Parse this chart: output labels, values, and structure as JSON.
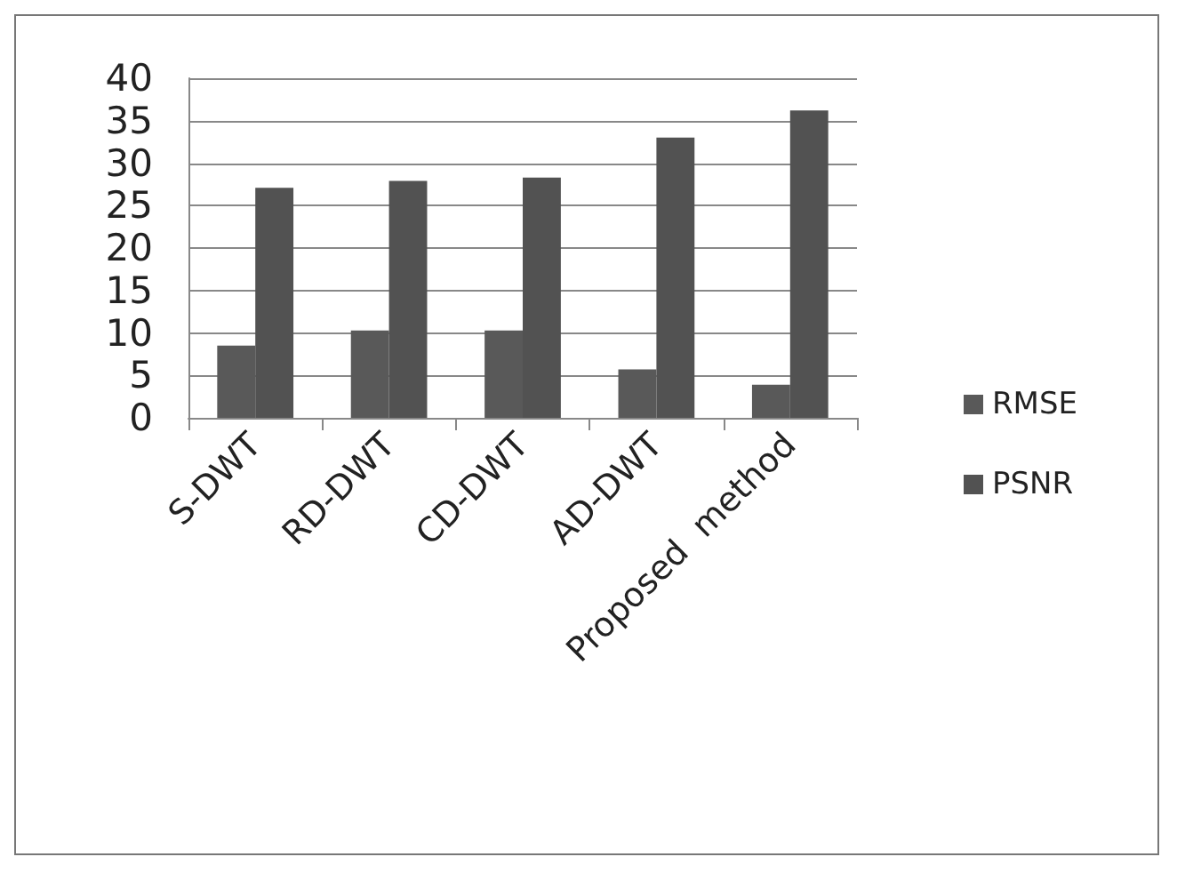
{
  "chart_data": {
    "type": "bar",
    "categories": [
      "S-DWT",
      "RD-DWT",
      "CD-DWT",
      "AD-DWT",
      "Proposed  method"
    ],
    "series": [
      {
        "name": "RMSE",
        "color": "#595959",
        "values": [
          8.5,
          10.3,
          10.3,
          5.7,
          3.9
        ]
      },
      {
        "name": "PSNR",
        "color": "#525252",
        "values": [
          27.1,
          27.9,
          28.3,
          33.0,
          36.2
        ]
      }
    ],
    "ylim": [
      0,
      40
    ],
    "yticks": [
      0,
      5,
      10,
      15,
      20,
      25,
      30,
      35,
      40
    ],
    "grid": "y",
    "legend": "right"
  }
}
